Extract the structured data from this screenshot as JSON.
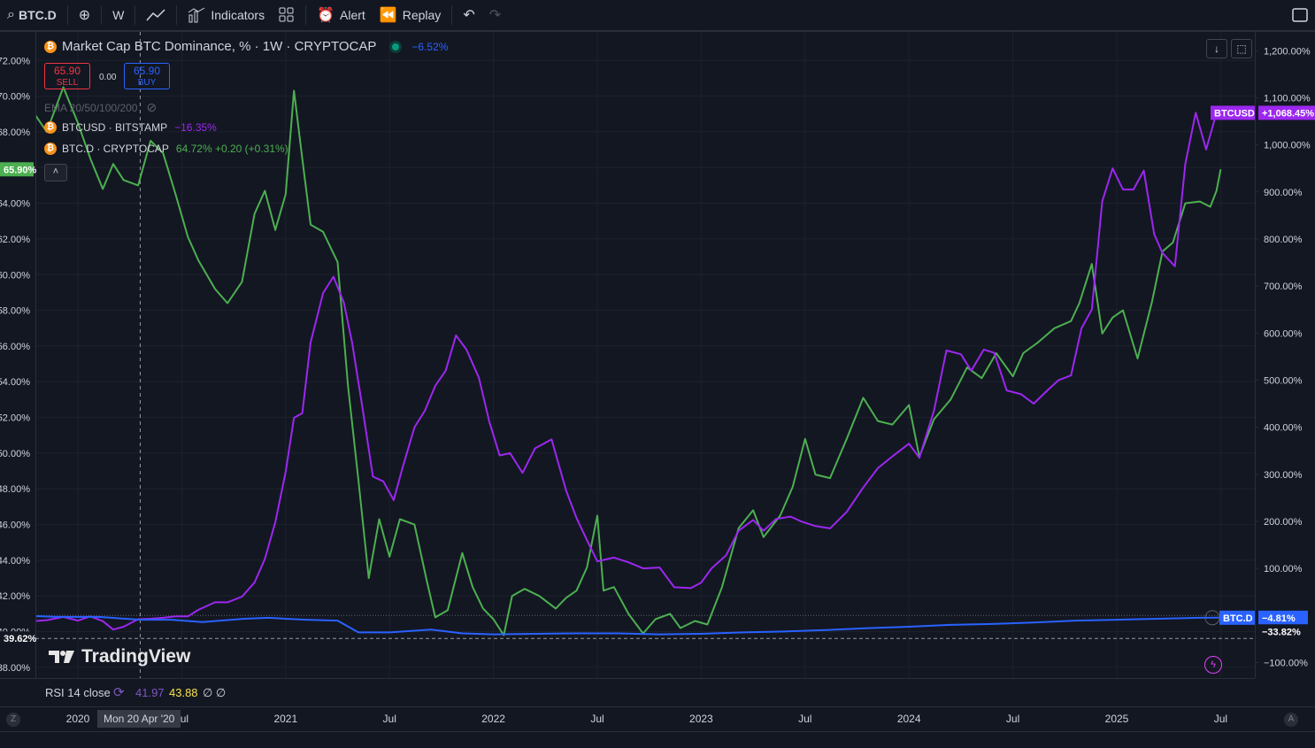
{
  "toolbar": {
    "symbol": "BTC.D",
    "interval": "W",
    "indicators_label": "Indicators",
    "alert_label": "Alert",
    "replay_label": "Replay"
  },
  "legend": {
    "main_title": "Market Cap BTC Dominance, % · 1W · CRYPTOCAP",
    "main_change": "−6.52%",
    "sell_price": "65.90",
    "sell_label": "SELL",
    "spread": "0.00",
    "buy_price": "65.90",
    "buy_label": "BUY",
    "ema_label": "EMA 20/50/100/200",
    "series1_name": "BTCUSD · BITSTAMP",
    "series1_change": "−16.35%",
    "series2_name": "BTC.D · CRYPTOCAP",
    "series2_values": "64.72%  +0.20 (+0.31%)"
  },
  "rsi": {
    "label": "RSI 14 close",
    "v1": "41.97",
    "v2": "43.88",
    "v3": "∅ ∅"
  },
  "crosshair_label": "Mon 20 Apr '20",
  "branding": "TradingView",
  "colors": {
    "background": "#131722",
    "btcd": "#4caf50",
    "btcusd": "#9c27f0",
    "compare_blue": "#2962ff",
    "grid": "#1e222d"
  },
  "chart_data": {
    "type": "line",
    "x_ticks": [
      "2020",
      "Jul",
      "2021",
      "Jul",
      "2022",
      "Jul",
      "2023",
      "Jul",
      "2024",
      "Jul",
      "2025",
      "Jul"
    ],
    "left_axis_ticks": [
      "72.00%",
      "70.00%",
      "68.00%",
      "66.00%",
      "64.00%",
      "62.00%",
      "60.00%",
      "58.00%",
      "56.00%",
      "54.00%",
      "52.00%",
      "50.00%",
      "48.00%",
      "46.00%",
      "44.00%",
      "42.00%",
      "40.00%",
      "38.00%"
    ],
    "right_axis_ticks": [
      "1,200.00%",
      "1,100.00%",
      "1,000.00%",
      "900.00%",
      "800.00%",
      "700.00%",
      "600.00%",
      "500.00%",
      "400.00%",
      "300.00%",
      "200.00%",
      "100.00%",
      "−100.00%"
    ],
    "left_ylim": [
      37.4,
      73.6
    ],
    "right_ylim": [
      -133,
      1240
    ],
    "labels": {
      "left_current": "65.90%",
      "left_low": "39.62%",
      "btcusd_tag": "BTCUSD",
      "btcusd_value": "+1,068.45%",
      "btcd_tag": "BTC.D",
      "btcd_value": "−4.81%",
      "third_value": "−33.82%"
    },
    "series": [
      {
        "name": "BTC.D",
        "axis": "left",
        "color": "#4caf50",
        "points": [
          [
            2019.71,
            70.3
          ],
          [
            2019.78,
            69.2
          ],
          [
            2019.85,
            68.0
          ],
          [
            2019.93,
            70.5
          ],
          [
            2020.0,
            68.5
          ],
          [
            2020.06,
            66.5
          ],
          [
            2020.12,
            64.8
          ],
          [
            2020.17,
            66.2
          ],
          [
            2020.22,
            65.3
          ],
          [
            2020.29,
            65.0
          ],
          [
            2020.35,
            67.5
          ],
          [
            2020.41,
            66.8
          ],
          [
            2020.47,
            64.5
          ],
          [
            2020.53,
            62.1
          ],
          [
            2020.58,
            60.8
          ],
          [
            2020.66,
            59.2
          ],
          [
            2020.72,
            58.4
          ],
          [
            2020.79,
            59.6
          ],
          [
            2020.85,
            63.4
          ],
          [
            2020.9,
            64.7
          ],
          [
            2020.95,
            62.5
          ],
          [
            2021.0,
            64.5
          ],
          [
            2021.04,
            70.3
          ],
          [
            2021.08,
            66.5
          ],
          [
            2021.12,
            62.8
          ],
          [
            2021.18,
            62.4
          ],
          [
            2021.25,
            60.7
          ],
          [
            2021.3,
            53.8
          ],
          [
            2021.35,
            48.5
          ],
          [
            2021.4,
            43.0
          ],
          [
            2021.45,
            46.3
          ],
          [
            2021.5,
            44.2
          ],
          [
            2021.55,
            46.3
          ],
          [
            2021.62,
            46.0
          ],
          [
            2021.68,
            42.8
          ],
          [
            2021.72,
            40.8
          ],
          [
            2021.78,
            41.2
          ],
          [
            2021.85,
            44.4
          ],
          [
            2021.9,
            42.5
          ],
          [
            2021.95,
            41.3
          ],
          [
            2022.0,
            40.7
          ],
          [
            2022.05,
            39.8
          ],
          [
            2022.09,
            42.0
          ],
          [
            2022.15,
            42.4
          ],
          [
            2022.22,
            42.0
          ],
          [
            2022.3,
            41.3
          ],
          [
            2022.35,
            41.9
          ],
          [
            2022.4,
            42.3
          ],
          [
            2022.45,
            43.6
          ],
          [
            2022.5,
            46.5
          ],
          [
            2022.53,
            42.3
          ],
          [
            2022.58,
            42.5
          ],
          [
            2022.65,
            41.0
          ],
          [
            2022.72,
            39.9
          ],
          [
            2022.78,
            40.7
          ],
          [
            2022.85,
            41.0
          ],
          [
            2022.9,
            40.2
          ],
          [
            2022.97,
            40.6
          ],
          [
            2023.03,
            40.4
          ],
          [
            2023.1,
            42.5
          ],
          [
            2023.18,
            45.8
          ],
          [
            2023.25,
            46.8
          ],
          [
            2023.3,
            45.3
          ],
          [
            2023.38,
            46.5
          ],
          [
            2023.44,
            48.1
          ],
          [
            2023.5,
            50.8
          ],
          [
            2023.55,
            48.8
          ],
          [
            2023.62,
            48.6
          ],
          [
            2023.7,
            50.8
          ],
          [
            2023.78,
            53.1
          ],
          [
            2023.85,
            51.8
          ],
          [
            2023.92,
            51.6
          ],
          [
            2024.0,
            52.7
          ],
          [
            2024.05,
            49.8
          ],
          [
            2024.12,
            51.9
          ],
          [
            2024.2,
            53.0
          ],
          [
            2024.28,
            54.8
          ],
          [
            2024.35,
            54.2
          ],
          [
            2024.42,
            55.6
          ],
          [
            2024.5,
            54.3
          ],
          [
            2024.55,
            55.6
          ],
          [
            2024.62,
            56.2
          ],
          [
            2024.7,
            57.0
          ],
          [
            2024.78,
            57.4
          ],
          [
            2024.82,
            58.4
          ],
          [
            2024.88,
            60.6
          ],
          [
            2024.93,
            56.7
          ],
          [
            2024.98,
            57.6
          ],
          [
            2025.03,
            58.0
          ],
          [
            2025.1,
            55.3
          ],
          [
            2025.17,
            58.5
          ],
          [
            2025.22,
            61.3
          ],
          [
            2025.27,
            61.8
          ],
          [
            2025.33,
            64.0
          ],
          [
            2025.4,
            64.1
          ],
          [
            2025.45,
            63.8
          ],
          [
            2025.48,
            64.7
          ],
          [
            2025.5,
            65.9
          ]
        ]
      },
      {
        "name": "BTCUSD",
        "axis": "right",
        "color": "#9c27f0",
        "points": [
          [
            2019.71,
            0
          ],
          [
            2019.78,
            -12
          ],
          [
            2019.85,
            -10
          ],
          [
            2019.93,
            -3
          ],
          [
            2020.0,
            -11
          ],
          [
            2020.06,
            -2
          ],
          [
            2020.12,
            -12
          ],
          [
            2020.17,
            -30
          ],
          [
            2020.22,
            -24
          ],
          [
            2020.29,
            -8
          ],
          [
            2020.35,
            -7
          ],
          [
            2020.41,
            -5
          ],
          [
            2020.47,
            -2
          ],
          [
            2020.53,
            -2
          ],
          [
            2020.58,
            12
          ],
          [
            2020.66,
            28
          ],
          [
            2020.72,
            28
          ],
          [
            2020.79,
            40
          ],
          [
            2020.85,
            70
          ],
          [
            2020.9,
            120
          ],
          [
            2020.95,
            198
          ],
          [
            2021.0,
            305
          ],
          [
            2021.04,
            420
          ],
          [
            2021.08,
            430
          ],
          [
            2021.12,
            580
          ],
          [
            2021.18,
            685
          ],
          [
            2021.23,
            720
          ],
          [
            2021.28,
            665
          ],
          [
            2021.32,
            580
          ],
          [
            2021.37,
            440
          ],
          [
            2021.42,
            295
          ],
          [
            2021.47,
            285
          ],
          [
            2021.52,
            245
          ],
          [
            2021.56,
            310
          ],
          [
            2021.62,
            400
          ],
          [
            2021.67,
            435
          ],
          [
            2021.72,
            488
          ],
          [
            2021.77,
            520
          ],
          [
            2021.82,
            595
          ],
          [
            2021.87,
            565
          ],
          [
            2021.93,
            505
          ],
          [
            2021.98,
            412
          ],
          [
            2022.03,
            340
          ],
          [
            2022.08,
            345
          ],
          [
            2022.14,
            303
          ],
          [
            2022.2,
            355
          ],
          [
            2022.28,
            374
          ],
          [
            2022.35,
            265
          ],
          [
            2022.4,
            207
          ],
          [
            2022.45,
            160
          ],
          [
            2022.5,
            115
          ],
          [
            2022.58,
            123
          ],
          [
            2022.65,
            113
          ],
          [
            2022.72,
            100
          ],
          [
            2022.8,
            102
          ],
          [
            2022.87,
            60
          ],
          [
            2022.95,
            58
          ],
          [
            2023.0,
            70
          ],
          [
            2023.05,
            100
          ],
          [
            2023.12,
            128
          ],
          [
            2023.18,
            180
          ],
          [
            2023.25,
            203
          ],
          [
            2023.3,
            180
          ],
          [
            2023.36,
            205
          ],
          [
            2023.43,
            210
          ],
          [
            2023.48,
            200
          ],
          [
            2023.55,
            190
          ],
          [
            2023.62,
            185
          ],
          [
            2023.7,
            220
          ],
          [
            2023.78,
            272
          ],
          [
            2023.85,
            313
          ],
          [
            2023.92,
            338
          ],
          [
            2024.0,
            365
          ],
          [
            2024.05,
            335
          ],
          [
            2024.12,
            435
          ],
          [
            2024.18,
            563
          ],
          [
            2024.25,
            555
          ],
          [
            2024.3,
            520
          ],
          [
            2024.36,
            565
          ],
          [
            2024.41,
            558
          ],
          [
            2024.47,
            478
          ],
          [
            2024.54,
            470
          ],
          [
            2024.6,
            450
          ],
          [
            2024.67,
            480
          ],
          [
            2024.72,
            500
          ],
          [
            2024.78,
            510
          ],
          [
            2024.83,
            610
          ],
          [
            2024.88,
            650
          ],
          [
            2024.93,
            880
          ],
          [
            2024.98,
            950
          ],
          [
            2025.03,
            905
          ],
          [
            2025.08,
            905
          ],
          [
            2025.13,
            945
          ],
          [
            2025.18,
            810
          ],
          [
            2025.22,
            770
          ],
          [
            2025.28,
            742
          ],
          [
            2025.33,
            960
          ],
          [
            2025.38,
            1068
          ],
          [
            2025.43,
            990
          ],
          [
            2025.48,
            1068
          ]
        ]
      },
      {
        "name": "BTC.D compare",
        "axis": "right",
        "color": "#2962ff",
        "points": [
          [
            2019.71,
            0
          ],
          [
            2019.9,
            -3
          ],
          [
            2020.1,
            -3
          ],
          [
            2020.3,
            -9
          ],
          [
            2020.45,
            -9
          ],
          [
            2020.6,
            -14
          ],
          [
            2020.8,
            -7
          ],
          [
            2020.92,
            -5
          ],
          [
            2021.0,
            -7
          ],
          [
            2021.1,
            -9
          ],
          [
            2021.25,
            -11
          ],
          [
            2021.35,
            -36
          ],
          [
            2021.5,
            -36
          ],
          [
            2021.7,
            -30
          ],
          [
            2021.85,
            -38
          ],
          [
            2022.0,
            -40
          ],
          [
            2022.2,
            -39
          ],
          [
            2022.4,
            -38
          ],
          [
            2022.6,
            -38
          ],
          [
            2022.8,
            -40
          ],
          [
            2023.0,
            -39
          ],
          [
            2023.2,
            -36
          ],
          [
            2023.4,
            -34
          ],
          [
            2023.6,
            -31
          ],
          [
            2023.8,
            -27
          ],
          [
            2024.0,
            -24
          ],
          [
            2024.2,
            -20
          ],
          [
            2024.4,
            -18
          ],
          [
            2024.6,
            -15
          ],
          [
            2024.8,
            -11
          ],
          [
            2025.0,
            -9
          ],
          [
            2025.2,
            -7
          ],
          [
            2025.4,
            -5
          ],
          [
            2025.5,
            -4.8
          ]
        ]
      }
    ]
  }
}
